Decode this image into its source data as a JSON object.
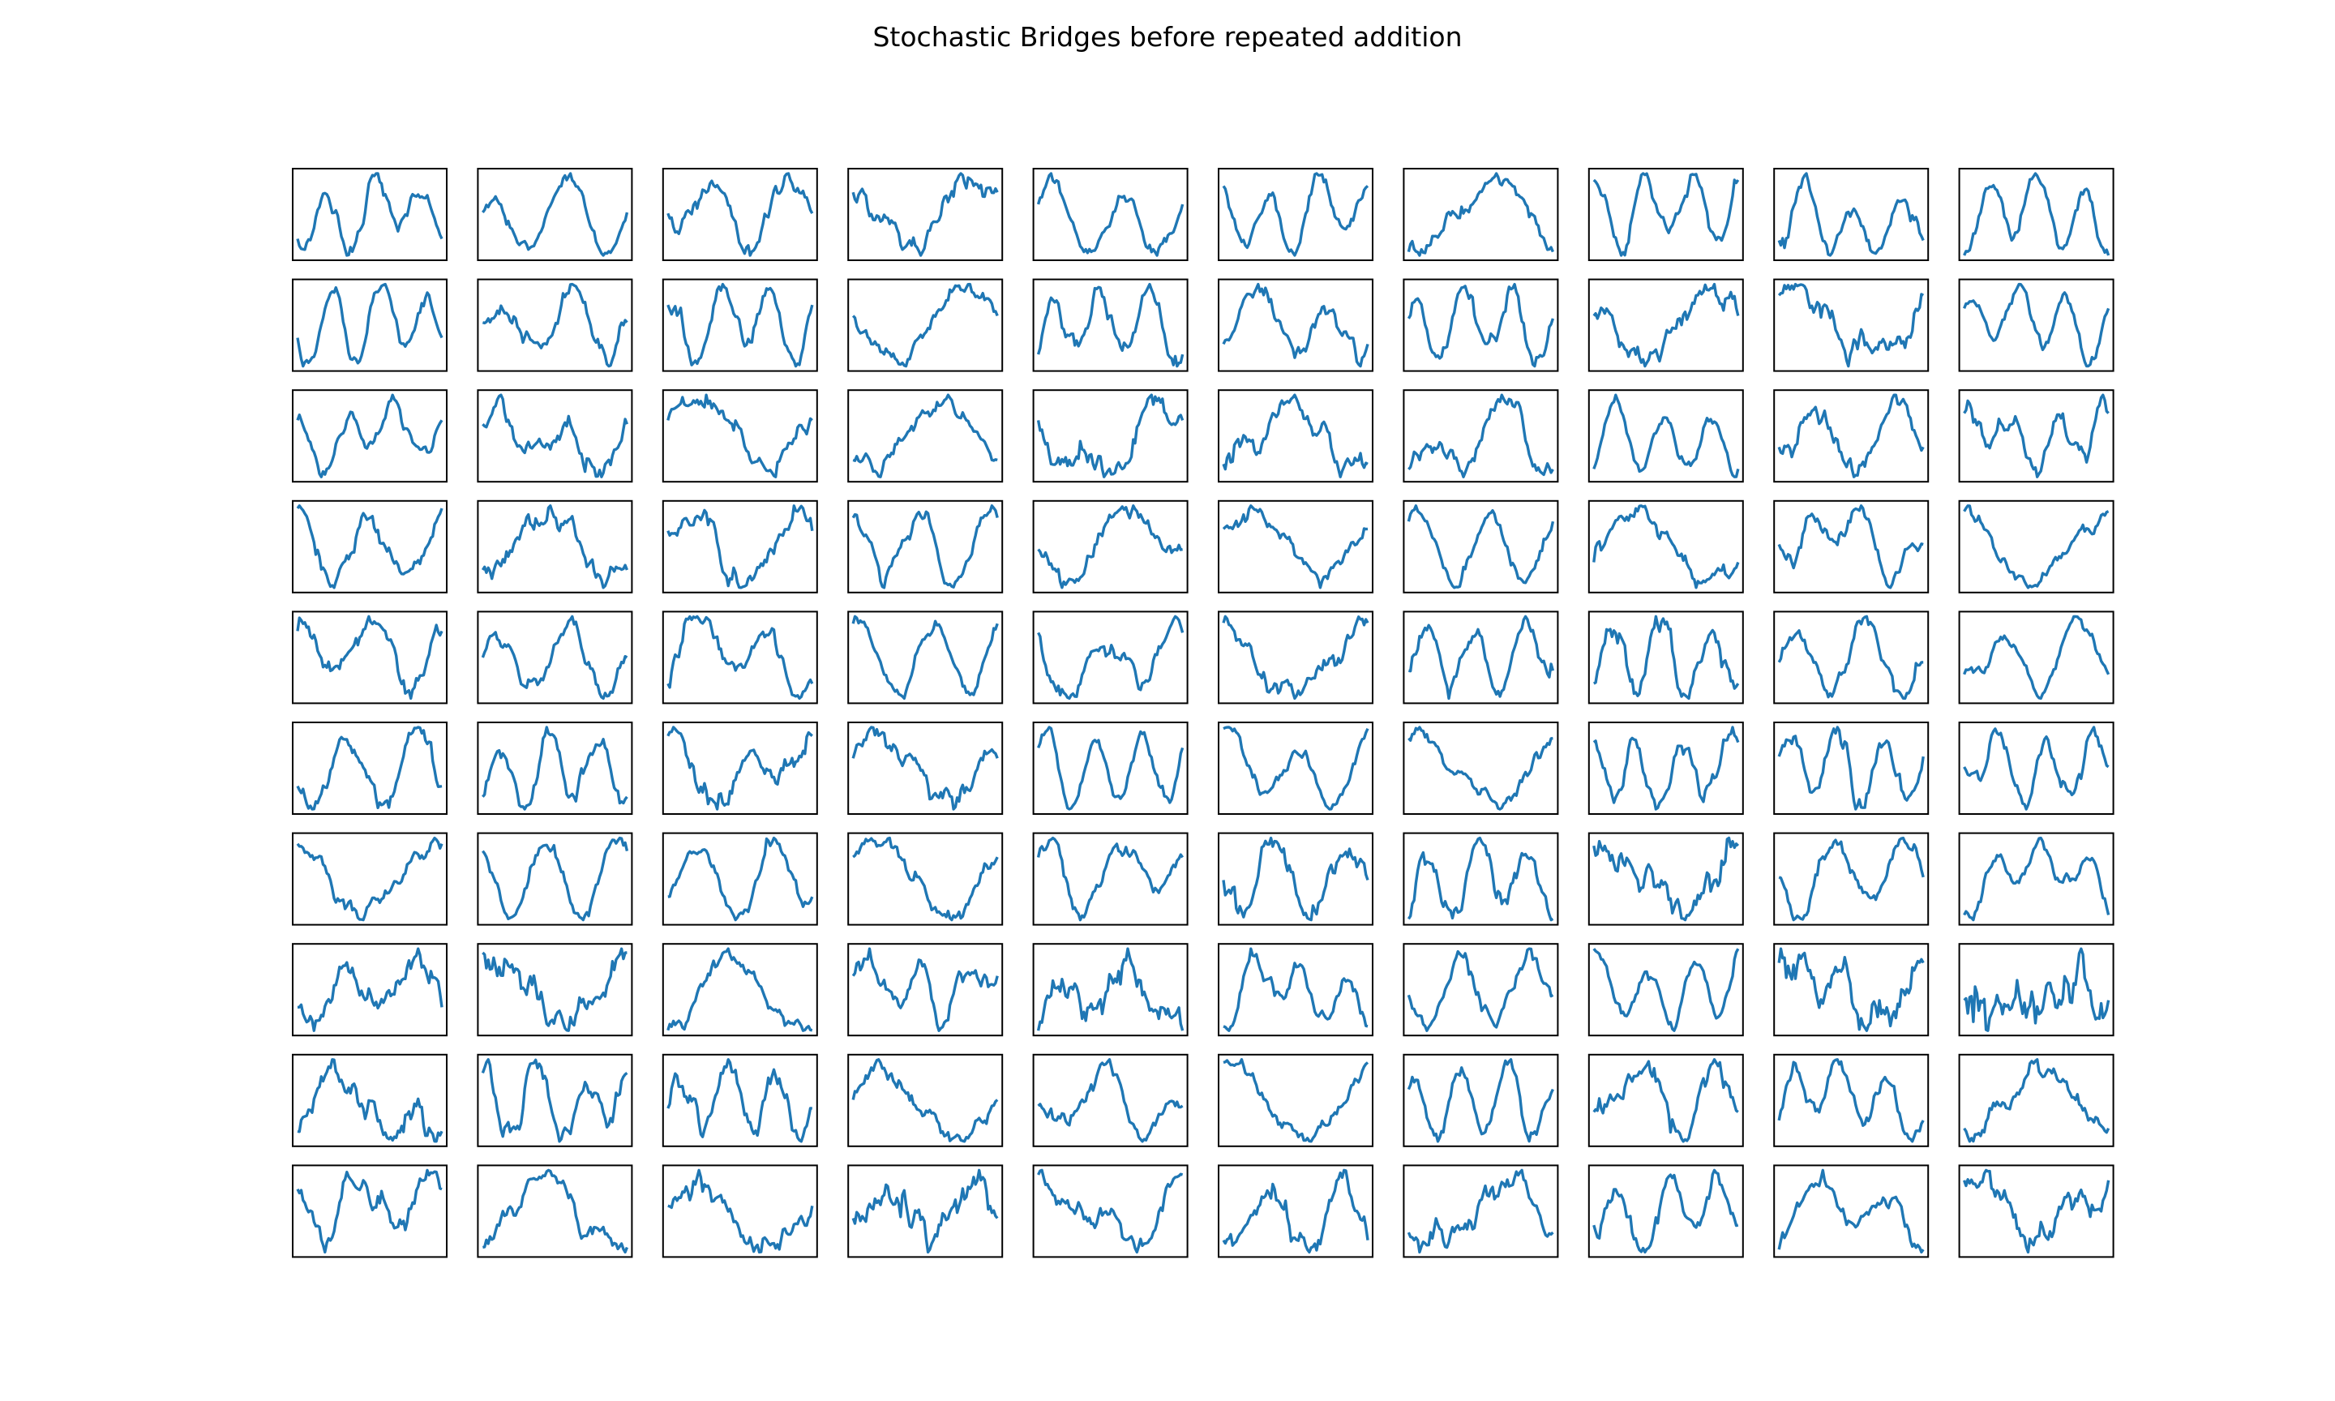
{
  "title": "Stochastic Bridges before repeated addition",
  "colors": {
    "line": "#1f77b4",
    "frame": "#000000",
    "background": "#ffffff"
  },
  "chart_data": {
    "type": "line",
    "title": "Stochastic Bridges before repeated addition",
    "grid": false,
    "axes_ticks": "hidden",
    "rows": 10,
    "cols": 10,
    "panel_count": 100,
    "points_per_panel": 80,
    "note_values": "each panel is a random bridge path; point values vary per panel and are not readable from the image",
    "seed": 20240607
  }
}
